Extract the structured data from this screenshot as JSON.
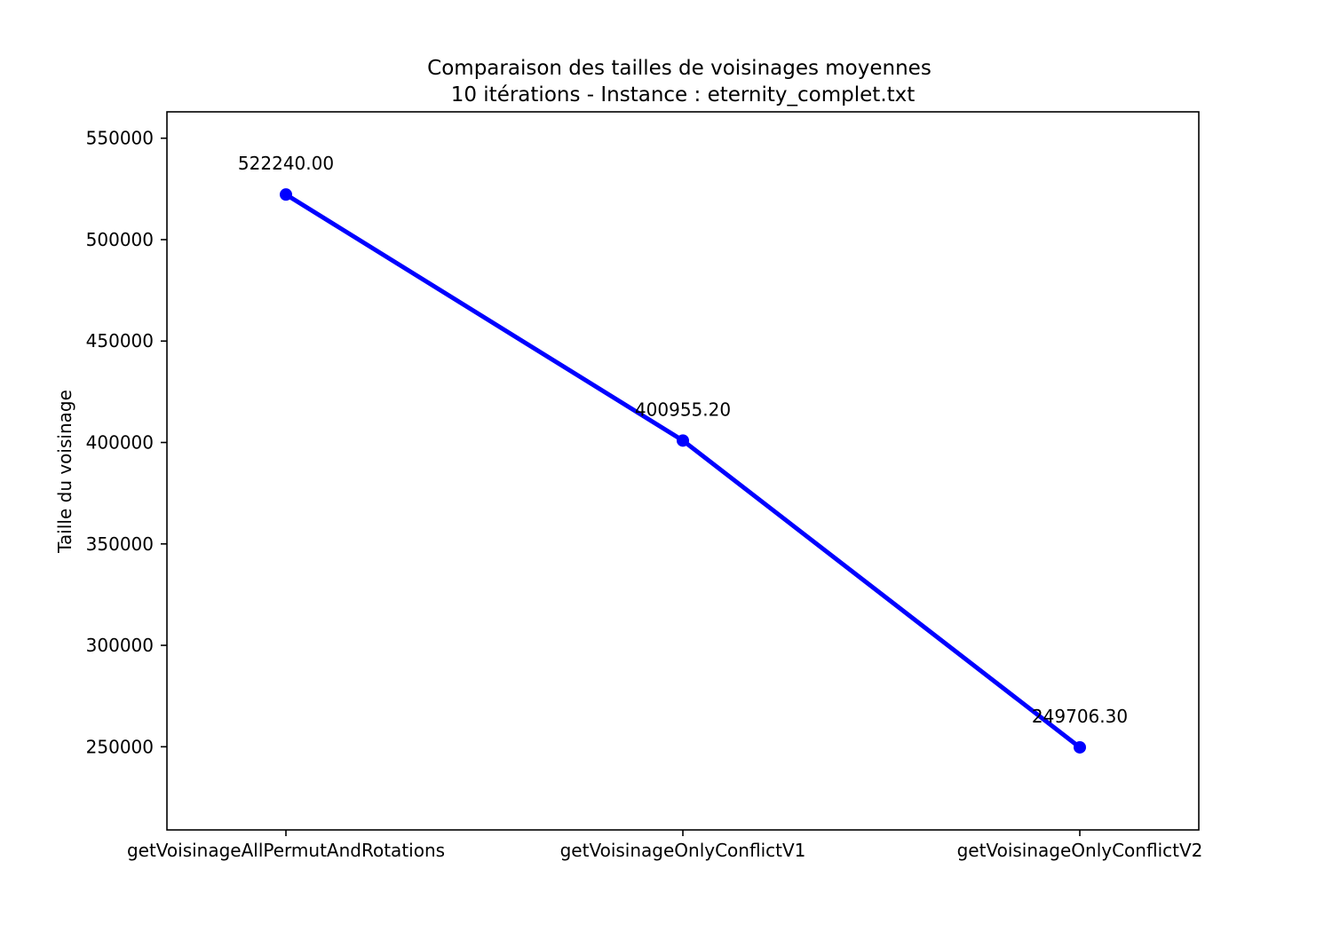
{
  "chart_data": {
    "type": "line",
    "title": "Comparaison des tailles de voisinages moyennes",
    "subtitle": "10 itérations - Instance : eternity_complet.txt",
    "xlabel": "",
    "ylabel": "Taille du voisinage",
    "categories": [
      "getVoisinageAllPermutAndRotations",
      "getVoisinageOnlyConflictV1",
      "getVoisinageOnlyConflictV2"
    ],
    "values": [
      522240.0,
      400955.2,
      249706.3
    ],
    "data_labels": [
      "522240.00",
      "400955.20",
      "249706.30"
    ],
    "ylim": [
      209000,
      563000
    ],
    "yticks": [
      250000,
      300000,
      350000,
      400000,
      450000,
      500000,
      550000
    ],
    "ytick_labels": [
      "250000",
      "300000",
      "350000",
      "400000",
      "450000",
      "500000",
      "550000"
    ],
    "grid": false,
    "line_color": "#0000ff",
    "marker_color": "#0000ff"
  }
}
